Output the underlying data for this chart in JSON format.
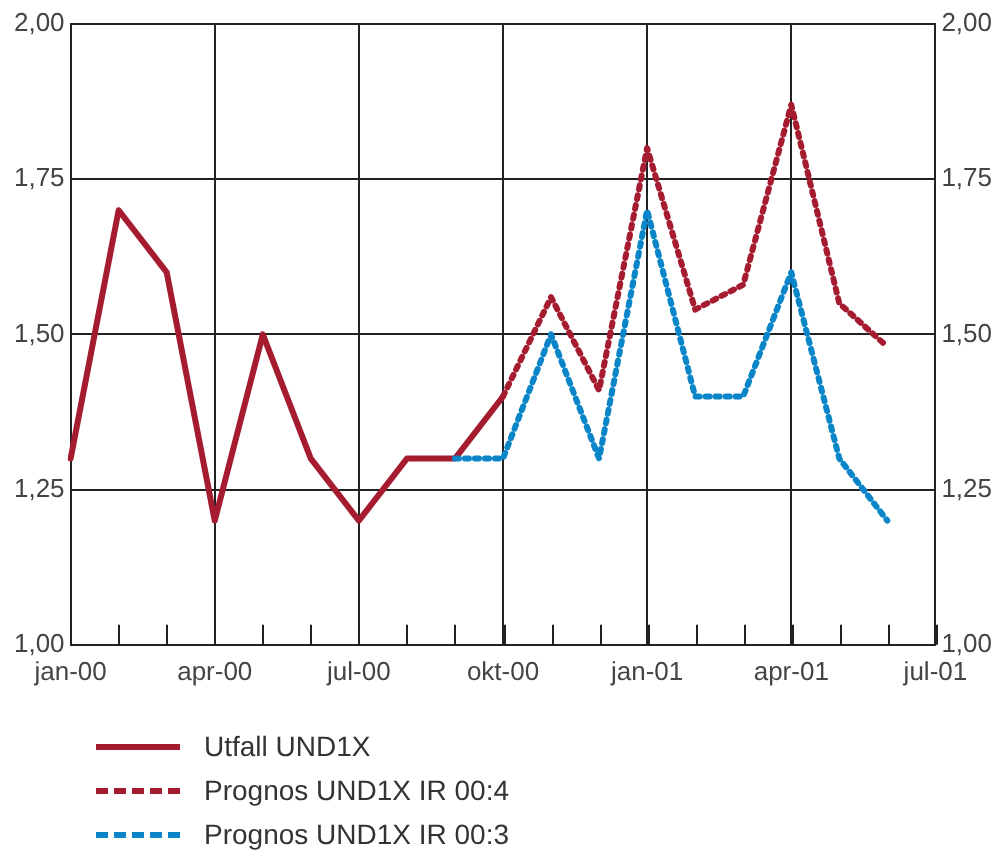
{
  "chart_data": {
    "type": "line",
    "categories": [
      "jan-00",
      null,
      null,
      "apr-00",
      null,
      null,
      "jul-00",
      null,
      null,
      "okt-00",
      null,
      null,
      "jan-01",
      null,
      null,
      "apr-01",
      null,
      null,
      "jul-01"
    ],
    "series": [
      {
        "name": "Utfall UND1X",
        "color": "#a51c30",
        "line_style": "solid",
        "values": [
          1.3,
          1.7,
          1.6,
          1.2,
          1.5,
          1.3,
          1.2,
          1.3,
          1.3,
          1.4,
          null,
          null,
          null,
          null,
          null,
          null,
          null,
          null,
          null
        ]
      },
      {
        "name": "Prognos UND1X IR 00:4",
        "color": "#a51c30",
        "line_style": "dotted",
        "values": [
          null,
          null,
          null,
          null,
          null,
          null,
          null,
          null,
          null,
          1.4,
          1.56,
          1.41,
          1.8,
          1.54,
          1.58,
          1.87,
          1.55,
          1.48,
          null
        ]
      },
      {
        "name": "Prognos UND1X IR 00:3",
        "color": "#0a86c8",
        "line_style": "dotted",
        "values": [
          null,
          null,
          null,
          null,
          null,
          null,
          null,
          null,
          1.3,
          1.3,
          1.5,
          1.3,
          1.7,
          1.4,
          1.4,
          1.6,
          1.3,
          1.2,
          null
        ]
      }
    ],
    "ylim": [
      1.0,
      2.0
    ],
    "yticks": [
      {
        "value": 1.0,
        "label": "1,00"
      },
      {
        "value": 1.25,
        "label": "1,25"
      },
      {
        "value": 1.5,
        "label": "1,50"
      },
      {
        "value": 1.75,
        "label": "1,75"
      },
      {
        "value": 2.0,
        "label": "2,00"
      }
    ],
    "y2lim": [
      1.0,
      2.0
    ],
    "y2ticks": [
      {
        "value": 1.0,
        "label": "1,00"
      },
      {
        "value": 1.25,
        "label": "1,25"
      },
      {
        "value": 1.5,
        "label": "1,50"
      },
      {
        "value": 1.75,
        "label": "1,75"
      },
      {
        "value": 2.0,
        "label": "2,00"
      }
    ],
    "grid": true,
    "legend": "bottom",
    "marker": "none"
  }
}
